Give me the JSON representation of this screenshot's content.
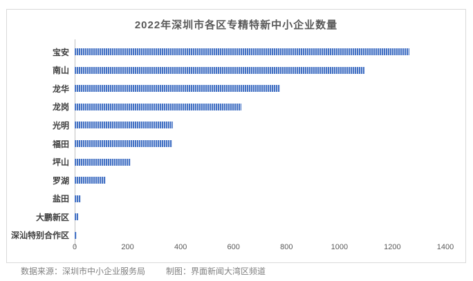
{
  "title": "2022年深圳市各区专精特新中小企业数量",
  "footer": {
    "source": "数据来源：深圳市中小企业服务局",
    "credit": "制图：界面新闻大湾区频道"
  },
  "colors": {
    "bar_blue": "#4472C4",
    "bar_stripe_gap": "#DBE3F3",
    "panel_border": "#D9D9D9",
    "axis_line": "#BFBFBF",
    "title_text": "#595959",
    "category_text": "#3D3D3D",
    "tick_text": "#595959",
    "footer_text": "#808080"
  },
  "chart_data": {
    "type": "bar",
    "orientation": "horizontal",
    "title": "2022年深圳市各区专精特新中小企业数量",
    "categories": [
      "宝安",
      "南山",
      "龙华",
      "龙岗",
      "光明",
      "福田",
      "坪山",
      "罗湖",
      "盐田",
      "大鹏新区",
      "深汕特别合作区"
    ],
    "values": [
      1265,
      1095,
      775,
      630,
      370,
      368,
      212,
      117,
      23,
      12,
      9
    ],
    "xlabel": "",
    "ylabel": "",
    "xlim": [
      0,
      1400
    ],
    "xticks": [
      0,
      200,
      400,
      600,
      800,
      1000,
      1200,
      1400
    ],
    "grid": false,
    "legend": false,
    "bar_style": "vertical-striped",
    "bar_color": "#4472C4"
  }
}
